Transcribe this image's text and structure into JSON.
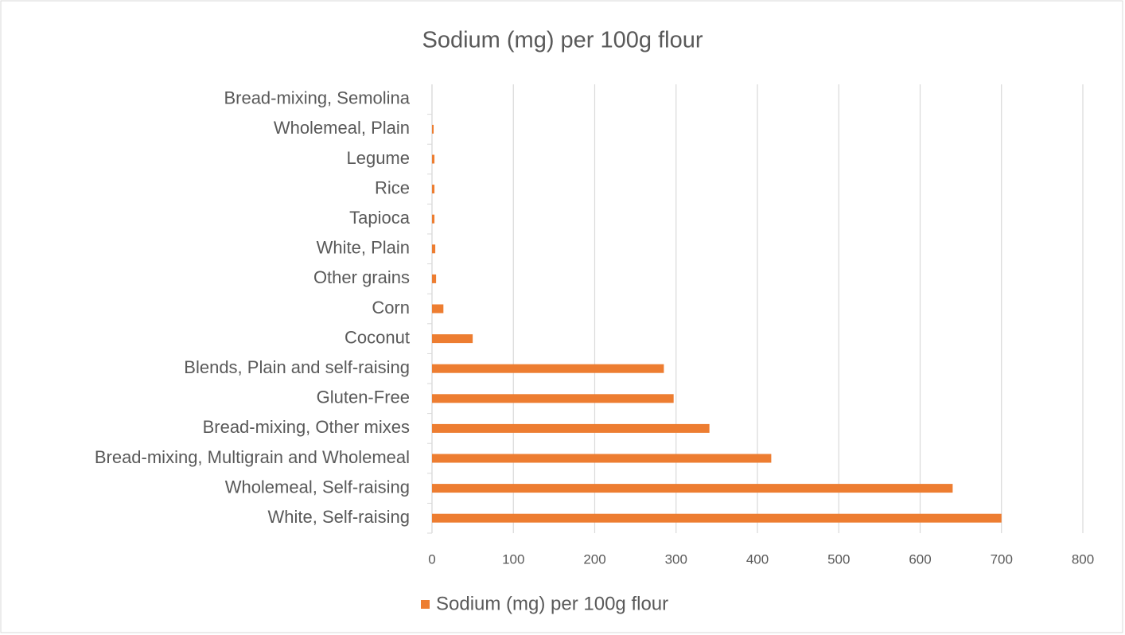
{
  "chart_data": {
    "type": "barh",
    "title": "Sodium (mg) per 100g flour",
    "categories": [
      "White, Self-raising",
      "Wholemeal, Self-raising",
      "Bread-mixing, Multigrain and Wholemeal",
      "Bread-mixing, Other mixes",
      "Gluten-Free",
      "Blends, Plain and self-raising",
      "Coconut",
      "Corn",
      "Other grains",
      "White, Plain",
      "Tapioca",
      "Rice",
      "Legume",
      "Wholemeal, Plain",
      "Bread-mixing, Semolina"
    ],
    "series": [
      {
        "name": "Sodium (mg) per 100g flour",
        "color": "#ed7d31",
        "values": [
          700,
          640,
          417,
          341,
          297,
          285,
          50,
          14,
          5,
          4,
          3,
          3,
          3,
          2,
          0
        ]
      }
    ],
    "xlim": [
      0,
      800
    ],
    "xticks": [
      0,
      100,
      200,
      300,
      400,
      500,
      600,
      700,
      800
    ],
    "grid": true,
    "legend": "bottom"
  }
}
